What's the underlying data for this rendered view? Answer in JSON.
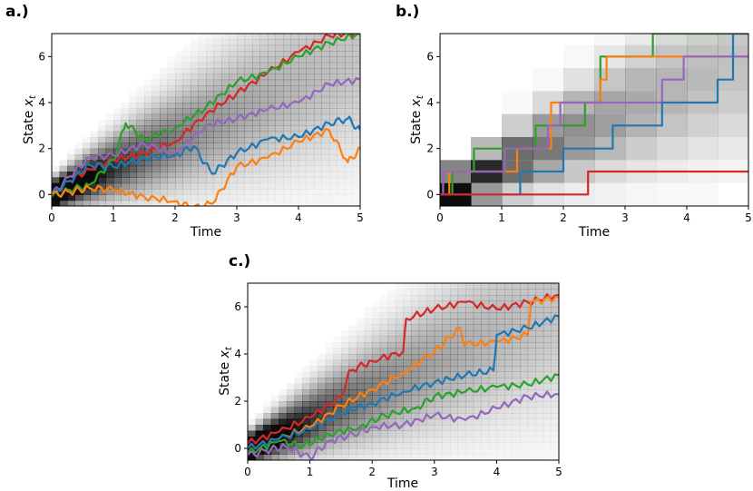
{
  "colors": {
    "blue": "#1f77b4",
    "orange": "#ff7f0e",
    "green": "#2ca02c",
    "red": "#d62728",
    "purple": "#9467bd"
  },
  "chart_data": [
    {
      "id": "a",
      "panel_label": "a.)",
      "type": "line",
      "background": "density-heatmap",
      "xlabel": "Time",
      "ylabel": "State x_t",
      "ylabel_main": "State ",
      "ylabel_var": "x",
      "ylabel_sub": "t",
      "xlim": [
        0,
        5
      ],
      "ylim": [
        -0.5,
        7
      ],
      "xticks": [
        0,
        1,
        2,
        3,
        4,
        5
      ],
      "yticks": [
        0,
        2,
        4,
        6
      ],
      "series": [
        {
          "name": "red",
          "color": "#d62728",
          "x": [
            0,
            0.3,
            0.6,
            1,
            1.5,
            2,
            2.5,
            3,
            3.5,
            4,
            4.5,
            5
          ],
          "y": [
            0,
            0.6,
            1.1,
            1.5,
            1.8,
            2.3,
            3.5,
            4.4,
            5.3,
            6.2,
            6.9,
            7.1
          ]
        },
        {
          "name": "green",
          "color": "#2ca02c",
          "x": [
            0,
            0.3,
            0.6,
            1,
            1.2,
            1.5,
            2,
            2.5,
            3,
            3.5,
            4,
            4.5,
            5
          ],
          "y": [
            -0.1,
            0.2,
            0.4,
            1.5,
            3.1,
            2.4,
            2.9,
            3.8,
            4.9,
            5.3,
            6.0,
            6.6,
            7.0
          ]
        },
        {
          "name": "purple",
          "color": "#9467bd",
          "x": [
            0,
            0.3,
            0.6,
            1,
            1.5,
            2,
            2.5,
            3,
            3.5,
            4,
            4.5,
            5
          ],
          "y": [
            0,
            0.8,
            1.6,
            1.7,
            2.2,
            1.8,
            3.0,
            3.3,
            3.7,
            4.0,
            4.8,
            5.0
          ]
        },
        {
          "name": "blue",
          "color": "#1f77b4",
          "x": [
            0,
            0.3,
            0.6,
            1,
            1.5,
            2,
            2.3,
            2.6,
            3,
            3.5,
            4,
            4.5,
            4.8,
            5
          ],
          "y": [
            0,
            0.6,
            1.3,
            1.2,
            1.6,
            1.7,
            2.1,
            0.9,
            1.8,
            2.4,
            2.5,
            3.1,
            3.3,
            2.8
          ]
        },
        {
          "name": "orange",
          "color": "#ff7f0e",
          "x": [
            0,
            0.3,
            0.6,
            1,
            1.5,
            2,
            2.3,
            2.6,
            3,
            3.5,
            4,
            4.5,
            4.8,
            5
          ],
          "y": [
            0,
            0.1,
            0.3,
            0.2,
            -0.1,
            -0.3,
            -0.6,
            -0.4,
            1.2,
            1.6,
            2.3,
            2.8,
            1.4,
            2.0
          ]
        }
      ]
    },
    {
      "id": "b",
      "panel_label": "b.)",
      "type": "step",
      "background": "density-heatmap",
      "xlabel": "Time",
      "ylabel": "State x_t",
      "ylabel_main": "State ",
      "ylabel_var": "x",
      "ylabel_sub": "t",
      "xlim": [
        0,
        5
      ],
      "ylim": [
        -0.5,
        7
      ],
      "xticks": [
        0,
        1,
        2,
        3,
        4,
        5
      ],
      "yticks": [
        0,
        2,
        4,
        6
      ],
      "series": [
        {
          "name": "green",
          "color": "#2ca02c",
          "x": [
            0,
            0.2,
            0.55,
            1.55,
            2.35,
            2.6,
            3.45,
            3.85
          ],
          "y": [
            0,
            1,
            2,
            3,
            4,
            6,
            7,
            7
          ]
        },
        {
          "name": "orange",
          "color": "#ff7f0e",
          "x": [
            0,
            0.15,
            1.25,
            1.8,
            2.6,
            2.7,
            3.3,
            3.9
          ],
          "y": [
            0,
            1,
            2,
            4,
            5,
            6,
            6,
            6
          ]
        },
        {
          "name": "purple",
          "color": "#9467bd",
          "x": [
            0,
            0.05,
            1.05,
            1.75,
            1.95,
            3.6,
            3.95,
            5
          ],
          "y": [
            0,
            1,
            2,
            3,
            4,
            5,
            6,
            6
          ]
        },
        {
          "name": "blue",
          "color": "#1f77b4",
          "x": [
            0,
            1.3,
            2.0,
            2.8,
            3.6,
            4.5,
            4.75,
            5
          ],
          "y": [
            0,
            1,
            2,
            3,
            4,
            5,
            7,
            7
          ]
        },
        {
          "name": "red",
          "color": "#d62728",
          "x": [
            0,
            2.4,
            5
          ],
          "y": [
            0,
            1,
            1
          ]
        }
      ]
    },
    {
      "id": "c",
      "panel_label": "c.)",
      "type": "line",
      "background": "density-heatmap",
      "xlabel": "Time",
      "ylabel": "State x_t",
      "ylabel_main": "State ",
      "ylabel_var": "x",
      "ylabel_sub": "t",
      "xlim": [
        0,
        5
      ],
      "ylim": [
        -0.5,
        7
      ],
      "xticks": [
        0,
        1,
        2,
        3,
        4,
        5
      ],
      "yticks": [
        0,
        2,
        4,
        6
      ],
      "series": [
        {
          "name": "red",
          "color": "#d62728",
          "x": [
            0,
            0.5,
            1,
            1.5,
            1.65,
            2,
            2.5,
            2.55,
            3,
            3.5,
            4,
            4.5,
            5
          ],
          "y": [
            0.2,
            0.7,
            1.3,
            2.2,
            3.3,
            3.7,
            4.1,
            5.5,
            5.9,
            6.2,
            5.9,
            6.2,
            6.5
          ]
        },
        {
          "name": "orange",
          "color": "#ff7f0e",
          "x": [
            0,
            0.5,
            1,
            1.5,
            2,
            2.5,
            3,
            3.4,
            3.5,
            4,
            4.5,
            4.55,
            5
          ],
          "y": [
            0,
            0.4,
            0.9,
            1.8,
            2.5,
            3.2,
            4.1,
            5.1,
            4.4,
            4.5,
            4.8,
            6.2,
            6.4
          ]
        },
        {
          "name": "blue",
          "color": "#1f77b4",
          "x": [
            0,
            0.5,
            1,
            1.5,
            2,
            2.5,
            3,
            3.5,
            3.95,
            4,
            4.5,
            5
          ],
          "y": [
            0,
            0.4,
            0.8,
            1.5,
            1.9,
            2.4,
            2.8,
            3.1,
            3.3,
            4.8,
            5.1,
            5.6
          ]
        },
        {
          "name": "green",
          "color": "#2ca02c",
          "x": [
            0,
            0.5,
            0.9,
            1.3,
            1.8,
            2.2,
            2.7,
            3,
            3.5,
            4,
            4.5,
            5
          ],
          "y": [
            -0.2,
            0.3,
            0.1,
            0.6,
            0.9,
            1.4,
            1.7,
            2.2,
            2.4,
            2.6,
            2.7,
            3.1
          ]
        },
        {
          "name": "purple",
          "color": "#9467bd",
          "x": [
            0,
            0.3,
            0.6,
            1,
            1.3,
            1.7,
            2,
            2.5,
            3,
            3.5,
            4,
            4.5,
            5
          ],
          "y": [
            -0.3,
            -0.1,
            0.1,
            -0.4,
            0.3,
            0.6,
            0.9,
            1.0,
            1.4,
            1.2,
            1.7,
            2.2,
            2.3
          ]
        }
      ]
    }
  ]
}
